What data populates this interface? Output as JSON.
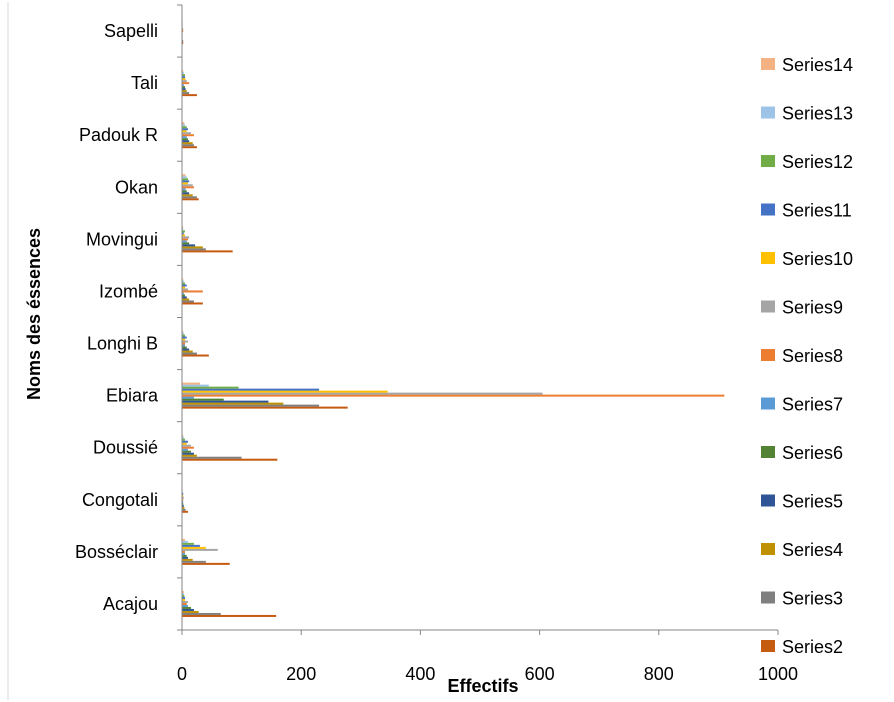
{
  "chart_data": {
    "type": "bar",
    "orientation": "horizontal",
    "title": "",
    "xlabel": "Effectifs",
    "ylabel": "Noms des éssences",
    "xlim": [
      0,
      1000
    ],
    "x_ticks": [
      "0",
      "200",
      "400",
      "600",
      "800",
      "1000"
    ],
    "grid": false,
    "legend_position": "right",
    "categories": [
      "Acajou",
      "Bosséclair",
      "Congotali",
      "Doussié",
      "Ebiara",
      "Longhi B",
      "Izombé",
      "Movingui",
      "Okan",
      "Padouk R",
      "Tali",
      "Sapelli"
    ],
    "series": [
      {
        "name": "Series2",
        "color": "#C55A11",
        "values": [
          158,
          80,
          10,
          160,
          278,
          45,
          35,
          85,
          28,
          25,
          25,
          2
        ]
      },
      {
        "name": "Series3",
        "color": "#7F7F7F",
        "values": [
          65,
          40,
          6,
          100,
          230,
          25,
          20,
          40,
          25,
          20,
          12,
          2
        ]
      },
      {
        "name": "Series4",
        "color": "#BF9000",
        "values": [
          28,
          18,
          4,
          25,
          170,
          18,
          12,
          35,
          18,
          18,
          8,
          1
        ]
      },
      {
        "name": "Series5",
        "color": "#2F5597",
        "values": [
          20,
          10,
          3,
          20,
          145,
          12,
          8,
          22,
          12,
          12,
          6,
          1
        ]
      },
      {
        "name": "Series6",
        "color": "#548235",
        "values": [
          15,
          8,
          2,
          15,
          70,
          8,
          5,
          12,
          8,
          10,
          5,
          1
        ]
      },
      {
        "name": "Series7",
        "color": "#5B9BD5",
        "values": [
          10,
          5,
          2,
          10,
          20,
          5,
          3,
          8,
          6,
          8,
          3,
          1
        ]
      },
      {
        "name": "Series8",
        "color": "#ED7D31",
        "values": [
          8,
          5,
          2,
          20,
          910,
          5,
          35,
          10,
          20,
          20,
          12,
          2
        ]
      },
      {
        "name": "Series9",
        "color": "#A5A5A5",
        "values": [
          10,
          60,
          3,
          15,
          605,
          10,
          10,
          12,
          18,
          15,
          8,
          2
        ]
      },
      {
        "name": "Series10",
        "color": "#FFC000",
        "values": [
          5,
          40,
          2,
          8,
          345,
          5,
          5,
          5,
          10,
          8,
          6,
          1
        ]
      },
      {
        "name": "Series11",
        "color": "#4472C4",
        "values": [
          5,
          30,
          2,
          10,
          230,
          8,
          8,
          3,
          12,
          10,
          5,
          1
        ]
      },
      {
        "name": "Series12",
        "color": "#70AD47",
        "values": [
          4,
          20,
          1,
          5,
          95,
          5,
          5,
          5,
          10,
          8,
          5,
          1
        ]
      },
      {
        "name": "Series13",
        "color": "#9DC3E6",
        "values": [
          3,
          10,
          1,
          3,
          45,
          3,
          3,
          2,
          8,
          5,
          3,
          1
        ]
      },
      {
        "name": "Series14",
        "color": "#F4B183",
        "values": [
          3,
          5,
          1,
          2,
          30,
          2,
          2,
          2,
          6,
          4,
          2,
          1
        ]
      }
    ]
  }
}
